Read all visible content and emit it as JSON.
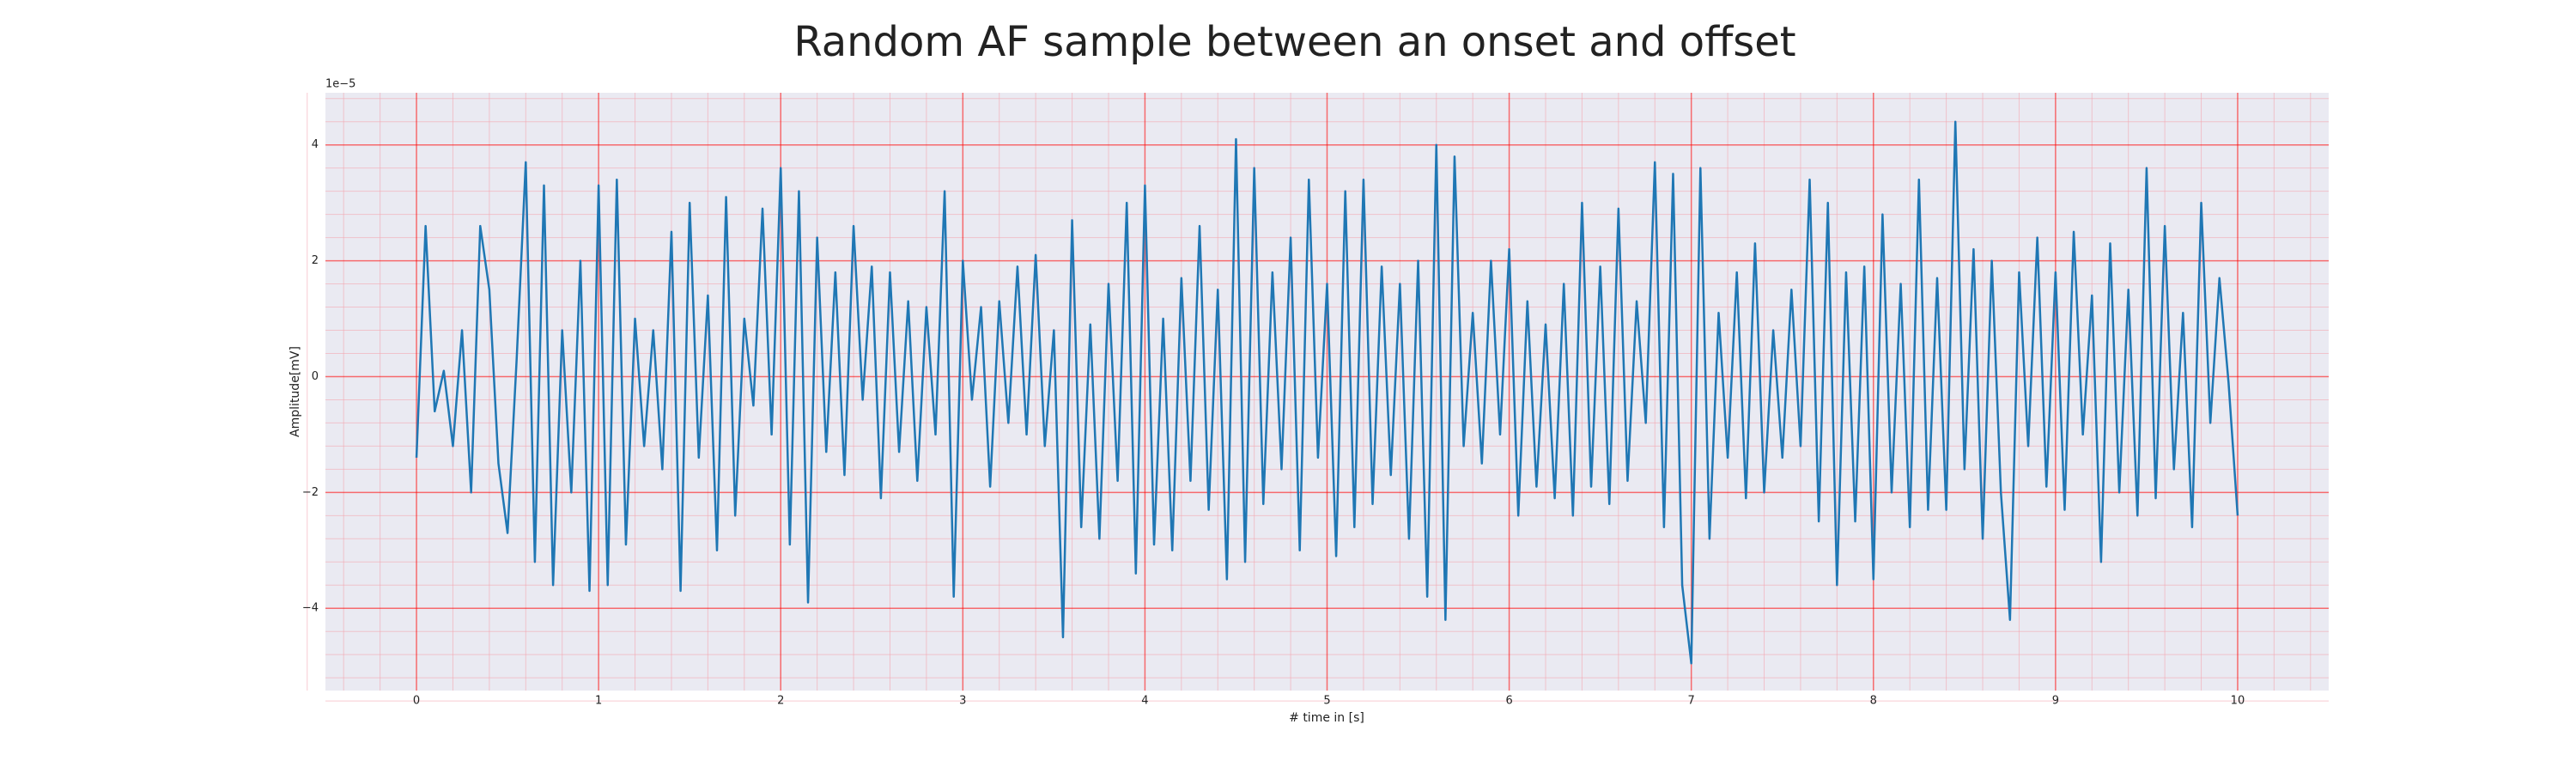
{
  "chart_data": {
    "type": "line",
    "title": "Random AF sample between an onset and offset",
    "xlabel": "# time in [s]",
    "ylabel": "Amplitude[mV]",
    "y_offset_text": "1e−5",
    "color": "#1f77b4",
    "grid": true,
    "minor_grid": true,
    "xlim": [
      -0.5,
      10.5
    ],
    "ylim": [
      -5.42,
      4.9
    ],
    "xticks": [
      0,
      1,
      2,
      3,
      4,
      5,
      6,
      7,
      8,
      9,
      10
    ],
    "yticks": [
      {
        "value": -4,
        "label": "−4"
      },
      {
        "value": -2,
        "label": "−2"
      },
      0,
      2,
      4
    ],
    "x": [
      0,
      0.05,
      0.1,
      0.15,
      0.2,
      0.25,
      0.3,
      0.35,
      0.4,
      0.45,
      0.5,
      0.55,
      0.6,
      0.65,
      0.7,
      0.75,
      0.8,
      0.85,
      0.9,
      0.95,
      1,
      1.05,
      1.1,
      1.15,
      1.2,
      1.25,
      1.3,
      1.35,
      1.4,
      1.45,
      1.5,
      1.55,
      1.6,
      1.65,
      1.7,
      1.75,
      1.8,
      1.85,
      1.9,
      1.95,
      2,
      2.05,
      2.1,
      2.15,
      2.2,
      2.25,
      2.3,
      2.35,
      2.4,
      2.45,
      2.5,
      2.55,
      2.6,
      2.65,
      2.7,
      2.75,
      2.8,
      2.85,
      2.9,
      2.95,
      3,
      3.05,
      3.1,
      3.15,
      3.2,
      3.25,
      3.3,
      3.35,
      3.4,
      3.45,
      3.5,
      3.55,
      3.6,
      3.65,
      3.7,
      3.75,
      3.8,
      3.85,
      3.9,
      3.95,
      4,
      4.05,
      4.1,
      4.15,
      4.2,
      4.25,
      4.3,
      4.35,
      4.4,
      4.45,
      4.5,
      4.55,
      4.6,
      4.65,
      4.7,
      4.75,
      4.8,
      4.85,
      4.9,
      4.95,
      5,
      5.05,
      5.1,
      5.15,
      5.2,
      5.25,
      5.3,
      5.35,
      5.4,
      5.45,
      5.5,
      5.55,
      5.6,
      5.65,
      5.7,
      5.75,
      5.8,
      5.85,
      5.9,
      5.95,
      6,
      6.05,
      6.1,
      6.15,
      6.2,
      6.25,
      6.3,
      6.35,
      6.4,
      6.45,
      6.5,
      6.55,
      6.6,
      6.65,
      6.7,
      6.75,
      6.8,
      6.85,
      6.9,
      6.95,
      7,
      7.05,
      7.1,
      7.15,
      7.2,
      7.25,
      7.3,
      7.35,
      7.4,
      7.45,
      7.5,
      7.55,
      7.6,
      7.65,
      7.7,
      7.75,
      7.8,
      7.85,
      7.9,
      7.95,
      8,
      8.05,
      8.1,
      8.15,
      8.2,
      8.25,
      8.3,
      8.35,
      8.4,
      8.45,
      8.5,
      8.55,
      8.6,
      8.65,
      8.7,
      8.75,
      8.8,
      8.85,
      8.9,
      8.95,
      9,
      9.05,
      9.1,
      9.15,
      9.2,
      9.25,
      9.3,
      9.35,
      9.4,
      9.45,
      9.5,
      9.55,
      9.6,
      9.65,
      9.7,
      9.75,
      9.8,
      9.85,
      9.9,
      9.95,
      10
    ],
    "values": [
      -1.4,
      2.6,
      -0.6,
      0.1,
      -1.2,
      0.8,
      -2.0,
      2.6,
      1.5,
      -1.5,
      -2.7,
      0.3,
      3.7,
      -3.2,
      3.3,
      -3.6,
      0.8,
      -2.0,
      2.0,
      -3.7,
      3.3,
      -3.6,
      3.4,
      -2.9,
      1.0,
      -1.2,
      0.8,
      -1.6,
      2.5,
      -3.7,
      3.0,
      -1.4,
      1.4,
      -3.0,
      3.1,
      -2.4,
      1.0,
      -0.5,
      2.9,
      -1.0,
      3.6,
      -2.9,
      3.2,
      -3.9,
      2.4,
      -1.3,
      1.8,
      -1.7,
      2.6,
      -0.4,
      1.9,
      -2.1,
      1.8,
      -1.3,
      1.3,
      -1.8,
      1.2,
      -1.0,
      3.2,
      -3.8,
      2.0,
      -0.4,
      1.2,
      -1.9,
      1.3,
      -0.8,
      1.9,
      -1.0,
      2.1,
      -1.2,
      0.8,
      -4.5,
      2.7,
      -2.6,
      0.9,
      -2.8,
      1.6,
      -1.8,
      3.0,
      -3.4,
      3.3,
      -2.9,
      1.0,
      -3.0,
      1.7,
      -1.8,
      2.6,
      -2.3,
      1.5,
      -3.5,
      4.1,
      -3.2,
      3.6,
      -2.2,
      1.8,
      -1.6,
      2.4,
      -3.0,
      3.4,
      -1.4,
      1.6,
      -3.1,
      3.2,
      -2.6,
      3.4,
      -2.2,
      1.9,
      -1.7,
      1.6,
      -2.8,
      2.0,
      -3.8,
      4.0,
      -4.2,
      3.8,
      -1.2,
      1.1,
      -1.5,
      2.0,
      -1.0,
      2.2,
      -2.4,
      1.3,
      -1.9,
      0.9,
      -2.1,
      1.6,
      -2.4,
      3.0,
      -1.9,
      1.9,
      -2.2,
      2.9,
      -1.8,
      1.3,
      -0.8,
      3.7,
      -2.6,
      3.5,
      -3.6,
      -4.95,
      3.6,
      -2.8,
      1.1,
      -1.4,
      1.8,
      -2.1,
      2.3,
      -2.0,
      0.8,
      -1.4,
      1.5,
      -1.2,
      3.4,
      -2.5,
      3.0,
      -3.6,
      1.8,
      -2.5,
      1.9,
      -3.5,
      2.8,
      -2.0,
      1.6,
      -2.6,
      3.4,
      -2.3,
      1.7,
      -2.3,
      4.4,
      -1.6,
      2.2,
      -2.8,
      2.0,
      -2.0,
      -4.2,
      1.8,
      -1.2,
      2.4,
      -1.9,
      1.8,
      -2.3,
      2.5,
      -1.0,
      1.4,
      -3.2,
      2.3,
      -2.0,
      1.5,
      -2.4,
      3.6,
      -2.1,
      2.6,
      -1.6,
      1.1,
      -2.6,
      3.0,
      -0.8,
      1.7,
      -0.1,
      -2.4
    ]
  }
}
